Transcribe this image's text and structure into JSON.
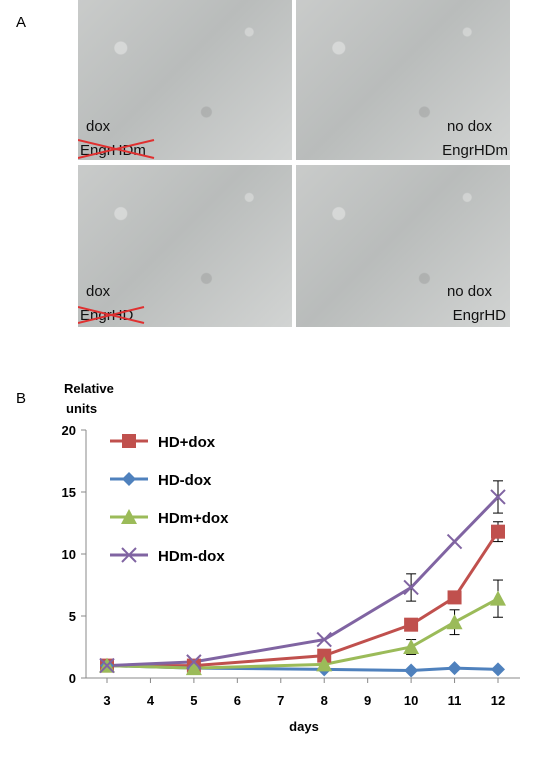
{
  "panel_a": {
    "letter": "A",
    "images": [
      {
        "label_top": "dox",
        "label_bottom": "EngrHDm",
        "bottom_struck": true
      },
      {
        "label_top": "no dox",
        "label_bottom": "EngrHDm",
        "bottom_struck": false
      },
      {
        "label_top": "dox",
        "label_bottom": "EngrHD",
        "bottom_struck": true
      },
      {
        "label_top": "no dox",
        "label_bottom": "EngrHD",
        "bottom_struck": false
      }
    ],
    "strike_color": "#e03030"
  },
  "panel_b": {
    "letter": "B"
  },
  "chart_data": {
    "type": "line",
    "ylabel_line1": "Relative",
    "ylabel_line2": "units",
    "xlabel": "days",
    "x": [
      3,
      5,
      8,
      10,
      11,
      12
    ],
    "xticks": [
      "3",
      "4",
      "5",
      "6",
      "7",
      "8",
      "9",
      "10",
      "11",
      "12"
    ],
    "yticks": [
      "0",
      "5",
      "10",
      "15",
      "20"
    ],
    "xlim": [
      3,
      12
    ],
    "ylim": [
      0,
      20
    ],
    "grid": false,
    "legend_position": "top-left",
    "series": [
      {
        "name": "HD+dox",
        "marker": "square",
        "color": "#c0504d",
        "values": [
          1.0,
          1.0,
          1.8,
          4.3,
          6.5,
          11.8
        ],
        "errors": [
          0,
          0,
          0.4,
          0,
          0,
          0.8
        ]
      },
      {
        "name": "HD-dox",
        "marker": "diamond",
        "color": "#4f81bd",
        "values": [
          1.0,
          0.8,
          0.7,
          0.6,
          0.8,
          0.7
        ],
        "errors": [
          0,
          0,
          0,
          0,
          0,
          0
        ]
      },
      {
        "name": "HDm+dox",
        "marker": "triangle",
        "color": "#9bbb59",
        "values": [
          1.0,
          0.8,
          1.1,
          2.5,
          4.5,
          6.4
        ],
        "errors": [
          0,
          0,
          0,
          0.6,
          1.0,
          1.5
        ]
      },
      {
        "name": "HDm-dox",
        "marker": "x",
        "color": "#8064a2",
        "values": [
          1.0,
          1.3,
          3.1,
          7.3,
          11.0,
          14.6
        ],
        "errors": [
          0,
          0,
          0,
          1.1,
          0,
          1.3
        ]
      }
    ]
  }
}
